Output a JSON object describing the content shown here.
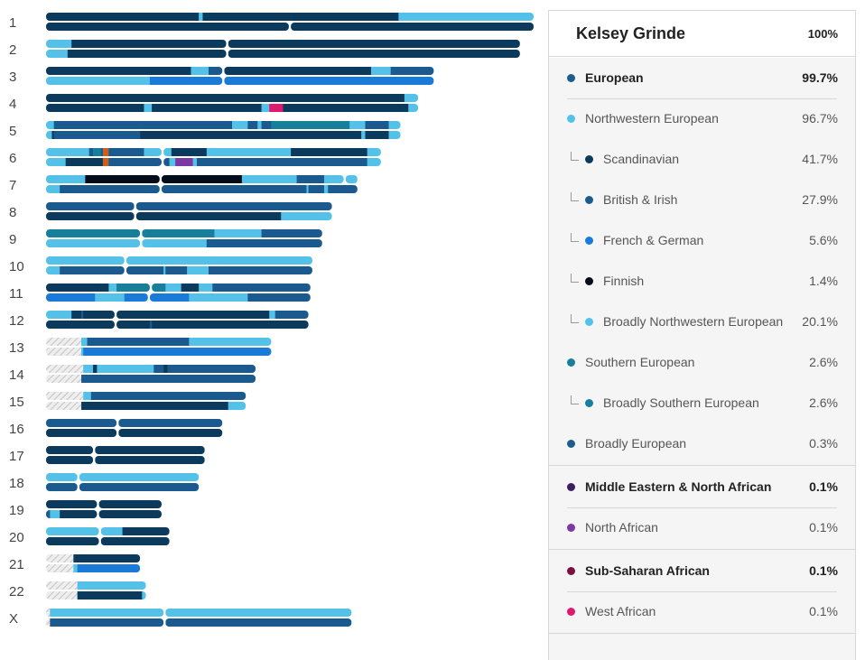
{
  "person": {
    "name": "Kelsey Grinde",
    "percent": "100%"
  },
  "colors": {
    "scandinavian": "#0b3a5c",
    "british_irish": "#1b5a8e",
    "french_german": "#1a7ad8",
    "finnish": "#050c19",
    "broadly_nw": "#53c1e8",
    "broadly_southern": "#177f99",
    "broadly_european": "#1d5c8c",
    "north_african": "#7b3aa3",
    "west_african": "#dd1a6e",
    "other_african": "#c9601f",
    "unassigned": "#d0d0d0"
  },
  "ancestry": [
    {
      "name": "European",
      "percent": "99.7%",
      "level": 0,
      "bold": true,
      "color": "#1d5c8c",
      "divider_after": "partial"
    },
    {
      "name": "Northwestern European",
      "percent": "96.7%",
      "level": 0,
      "bold": false,
      "color": "#53c1e8",
      "divider_after": "none"
    },
    {
      "name": "Scandinavian",
      "percent": "41.7%",
      "level": 1,
      "bold": false,
      "color": "#0b3a5c",
      "divider_after": "none"
    },
    {
      "name": "British & Irish",
      "percent": "27.9%",
      "level": 1,
      "bold": false,
      "color": "#1b5a8e",
      "divider_after": "none"
    },
    {
      "name": "French & German",
      "percent": "5.6%",
      "level": 1,
      "bold": false,
      "color": "#1a7ad8",
      "divider_after": "none"
    },
    {
      "name": "Finnish",
      "percent": "1.4%",
      "level": 1,
      "bold": false,
      "color": "#050c19",
      "divider_after": "none"
    },
    {
      "name": "Broadly Northwestern European",
      "percent": "20.1%",
      "level": 1,
      "bold": false,
      "color": "#53c1e8",
      "divider_after": "none"
    },
    {
      "name": "Southern European",
      "percent": "2.6%",
      "level": 0,
      "bold": false,
      "color": "#177f99",
      "divider_after": "none"
    },
    {
      "name": "Broadly Southern European",
      "percent": "2.6%",
      "level": 1,
      "bold": false,
      "color": "#177f99",
      "divider_after": "none"
    },
    {
      "name": "Broadly European",
      "percent": "0.3%",
      "level": 0,
      "bold": false,
      "color": "#1d5c8c",
      "divider_after": "full"
    },
    {
      "name": "Middle Eastern & North African",
      "percent": "0.1%",
      "level": 0,
      "bold": true,
      "color": "#3e1d63",
      "divider_after": "partial"
    },
    {
      "name": "North African",
      "percent": "0.1%",
      "level": 0,
      "bold": false,
      "color": "#7b3aa3",
      "divider_after": "full"
    },
    {
      "name": "Sub-Saharan African",
      "percent": "0.1%",
      "level": 0,
      "bold": true,
      "color": "#7a1240",
      "divider_after": "partial"
    },
    {
      "name": "West African",
      "percent": "0.1%",
      "level": 0,
      "bold": false,
      "color": "#dd1a6e",
      "divider_after": "full"
    }
  ],
  "chart_data": {
    "type": "chromosome_painting",
    "unit": "Mb",
    "chromosomes": [
      {
        "label": "1",
        "length": 249,
        "top": [
          [
            "SC",
            0,
            78
          ],
          [
            "BN",
            78,
            80
          ],
          [
            "SC",
            80,
            125
          ],
          [
            "SC",
            125,
            180
          ],
          [
            "BN",
            180,
            249
          ]
        ],
        "bottom": [
          [
            "SC",
            0,
            124
          ],
          [
            "SC",
            125,
            249
          ]
        ]
      },
      {
        "label": "2",
        "length": 242,
        "top": [
          [
            "BN",
            0,
            13
          ],
          [
            "SC",
            13,
            92
          ],
          [
            "SC",
            93,
            242
          ]
        ],
        "bottom": [
          [
            "BN",
            0,
            11
          ],
          [
            "SC",
            11,
            92
          ],
          [
            "SC",
            93,
            242
          ]
        ]
      },
      {
        "label": "3",
        "length": 198,
        "top": [
          [
            "SC",
            0,
            74
          ],
          [
            "BN",
            74,
            83
          ],
          [
            "BI",
            83,
            90
          ],
          [
            "SC",
            91,
            166
          ],
          [
            "BN",
            166,
            176
          ],
          [
            "BI",
            176,
            198
          ]
        ],
        "bottom": [
          [
            "BN",
            0,
            53
          ],
          [
            "FG",
            53,
            90
          ],
          [
            "FG",
            91,
            198
          ]
        ]
      },
      {
        "label": "4",
        "length": 190,
        "top": [
          [
            "SC",
            0,
            50
          ],
          [
            "SC",
            50,
            183
          ],
          [
            "BN",
            183,
            190
          ]
        ],
        "bottom": [
          [
            "SC",
            0,
            50
          ],
          [
            "BN",
            50,
            54
          ],
          [
            "SC",
            54,
            110
          ],
          [
            "BN",
            110,
            114
          ],
          [
            "WA",
            114,
            121
          ],
          [
            "SC",
            121,
            185
          ],
          [
            "BN",
            185,
            190
          ]
        ]
      },
      {
        "label": "5",
        "length": 181,
        "top": [
          [
            "BN",
            0,
            4
          ],
          [
            "BI",
            4,
            48
          ],
          [
            "BI",
            48,
            95
          ],
          [
            "BN",
            95,
            103
          ],
          [
            "BI",
            103,
            108
          ],
          [
            "BN",
            108,
            110
          ],
          [
            "BI",
            110,
            115
          ],
          [
            "BS",
            115,
            155
          ],
          [
            "BN",
            155,
            163
          ],
          [
            "BI",
            163,
            175
          ],
          [
            "BN",
            175,
            181
          ]
        ],
        "bottom": [
          [
            "BN",
            0,
            3
          ],
          [
            "SC",
            3,
            4
          ],
          [
            "BI",
            4,
            48
          ],
          [
            "SC",
            48,
            161
          ],
          [
            "BN",
            161,
            163
          ],
          [
            "SC",
            163,
            175
          ],
          [
            "BN",
            175,
            181
          ]
        ]
      },
      {
        "label": "6",
        "length": 171,
        "top": [
          [
            "BN",
            0,
            22
          ],
          [
            "BI",
            22,
            24
          ],
          [
            "BS",
            24,
            28
          ],
          [
            "BI",
            28,
            29
          ],
          [
            "OA",
            29,
            32
          ],
          [
            "BI",
            32,
            50
          ],
          [
            "BN",
            50,
            59
          ],
          [
            "BN",
            60,
            64
          ],
          [
            "SC",
            64,
            82
          ],
          [
            "BN",
            82,
            125
          ],
          [
            "SC",
            125,
            164
          ],
          [
            "BN",
            164,
            171
          ]
        ],
        "bottom": [
          [
            "BN",
            0,
            10
          ],
          [
            "SC",
            10,
            29
          ],
          [
            "OA",
            29,
            32
          ],
          [
            "BI",
            32,
            59
          ],
          [
            "BI",
            60,
            63
          ],
          [
            "BN",
            63,
            66
          ],
          [
            "NA",
            66,
            75
          ],
          [
            "BN",
            75,
            77
          ],
          [
            "BI",
            77,
            164
          ],
          [
            "BN",
            164,
            171
          ]
        ]
      },
      {
        "label": "7",
        "length": 159,
        "top": [
          [
            "BN",
            0,
            20
          ],
          [
            "FI",
            20,
            58
          ],
          [
            "FI",
            59,
            100
          ],
          [
            "BN",
            100,
            128
          ],
          [
            "BI",
            128,
            142
          ],
          [
            "BN",
            142,
            152
          ],
          [
            "BN",
            153,
            159
          ]
        ],
        "bottom": [
          [
            "BN",
            0,
            7
          ],
          [
            "BI",
            7,
            58
          ],
          [
            "BI",
            59,
            133
          ],
          [
            "BN",
            133,
            134
          ],
          [
            "BI",
            134,
            142
          ],
          [
            "BN",
            142,
            144
          ],
          [
            "BI",
            144,
            159
          ]
        ]
      },
      {
        "label": "8",
        "length": 146,
        "top": [
          [
            "BI",
            0,
            45
          ],
          [
            "BI",
            46,
            146
          ]
        ],
        "bottom": [
          [
            "SC",
            0,
            45
          ],
          [
            "SC",
            46,
            120
          ],
          [
            "BN",
            120,
            146
          ]
        ]
      },
      {
        "label": "9",
        "length": 141,
        "top": [
          [
            "BS",
            0,
            48
          ],
          [
            "BS",
            49,
            86
          ],
          [
            "BN",
            86,
            110
          ],
          [
            "BI",
            110,
            141
          ]
        ],
        "bottom": [
          [
            "BN",
            0,
            48
          ],
          [
            "BN",
            49,
            82
          ],
          [
            "BI",
            82,
            141
          ]
        ]
      },
      {
        "label": "10",
        "length": 136,
        "top": [
          [
            "BN",
            0,
            40
          ],
          [
            "BN",
            41,
            136
          ]
        ],
        "bottom": [
          [
            "BN",
            0,
            7
          ],
          [
            "BI",
            7,
            40
          ],
          [
            "BI",
            41,
            60
          ],
          [
            "BN",
            60,
            61
          ],
          [
            "BI",
            61,
            72
          ],
          [
            "BN",
            72,
            83
          ],
          [
            "BI",
            83,
            136
          ]
        ]
      },
      {
        "label": "11",
        "length": 135,
        "top": [
          [
            "SC",
            0,
            32
          ],
          [
            "BN",
            32,
            36
          ],
          [
            "BS",
            36,
            53
          ],
          [
            "BS",
            54,
            61
          ],
          [
            "BN",
            61,
            69
          ],
          [
            "SC",
            69,
            78
          ],
          [
            "BN",
            78,
            85
          ],
          [
            "BI",
            85,
            135
          ]
        ],
        "bottom": [
          [
            "FG",
            0,
            25
          ],
          [
            "BN",
            25,
            40
          ],
          [
            "FG",
            40,
            52
          ],
          [
            "FG",
            53,
            73
          ],
          [
            "BN",
            73,
            103
          ],
          [
            "BI",
            103,
            135
          ]
        ]
      },
      {
        "label": "12",
        "length": 134,
        "top": [
          [
            "BN",
            0,
            13
          ],
          [
            "SC",
            13,
            18
          ],
          [
            "BI",
            18,
            19
          ],
          [
            "SC",
            19,
            35
          ],
          [
            "SC",
            36,
            114
          ],
          [
            "BN",
            114,
            117
          ],
          [
            "BI",
            117,
            134
          ]
        ],
        "bottom": [
          [
            "SC",
            0,
            35
          ],
          [
            "SC",
            36,
            53
          ],
          [
            "BI",
            53,
            54
          ],
          [
            "SC",
            54,
            134
          ]
        ]
      },
      {
        "label": "13",
        "length": 115,
        "top": [
          [
            "UN",
            0,
            18
          ],
          [
            "BN",
            18,
            21
          ],
          [
            "BI",
            21,
            73
          ],
          [
            "BN",
            73,
            115
          ]
        ],
        "bottom": [
          [
            "UN",
            0,
            18
          ],
          [
            "BN",
            18,
            19
          ],
          [
            "FG",
            19,
            115
          ]
        ]
      },
      {
        "label": "14",
        "length": 107,
        "top": [
          [
            "UN",
            0,
            19
          ],
          [
            "BN",
            19,
            24
          ],
          [
            "SC",
            24,
            26
          ],
          [
            "BN",
            26,
            55
          ],
          [
            "BI",
            55,
            60
          ],
          [
            "SC",
            60,
            62
          ],
          [
            "BI",
            62,
            107
          ]
        ],
        "bottom": [
          [
            "UN",
            0,
            18
          ],
          [
            "BI",
            18,
            107
          ]
        ]
      },
      {
        "label": "15",
        "length": 102,
        "top": [
          [
            "UN",
            0,
            19
          ],
          [
            "BN",
            19,
            23
          ],
          [
            "BI",
            23,
            102
          ]
        ],
        "bottom": [
          [
            "UN",
            0,
            18
          ],
          [
            "SC",
            18,
            93
          ],
          [
            "BN",
            93,
            102
          ]
        ]
      },
      {
        "label": "16",
        "length": 90,
        "top": [
          [
            "BI",
            0,
            36
          ],
          [
            "BI",
            37,
            90
          ]
        ],
        "bottom": [
          [
            "SC",
            0,
            36
          ],
          [
            "SC",
            37,
            90
          ]
        ]
      },
      {
        "label": "17",
        "length": 81,
        "top": [
          [
            "SC",
            0,
            24
          ],
          [
            "SC",
            25,
            81
          ]
        ],
        "bottom": [
          [
            "SC",
            0,
            24
          ],
          [
            "SC",
            25,
            81
          ]
        ]
      },
      {
        "label": "18",
        "length": 78,
        "top": [
          [
            "BN",
            0,
            16
          ],
          [
            "BN",
            17,
            78
          ]
        ],
        "bottom": [
          [
            "BI",
            0,
            16
          ],
          [
            "BI",
            17,
            78
          ]
        ]
      },
      {
        "label": "19",
        "length": 59,
        "top": [
          [
            "SC",
            0,
            26
          ],
          [
            "SC",
            27,
            59
          ]
        ],
        "bottom": [
          [
            "BI",
            0,
            2
          ],
          [
            "BN",
            2,
            7
          ],
          [
            "SC",
            7,
            26
          ],
          [
            "SC",
            27,
            59
          ]
        ]
      },
      {
        "label": "20",
        "length": 63,
        "top": [
          [
            "BN",
            0,
            27
          ],
          [
            "BN",
            28,
            39
          ],
          [
            "SC",
            39,
            63
          ]
        ],
        "bottom": [
          [
            "SC",
            0,
            27
          ],
          [
            "SC",
            28,
            63
          ]
        ]
      },
      {
        "label": "21",
        "length": 48,
        "top": [
          [
            "UN",
            0,
            14
          ],
          [
            "SC",
            14,
            48
          ]
        ],
        "bottom": [
          [
            "UN",
            0,
            14
          ],
          [
            "BN",
            14,
            16
          ],
          [
            "FG",
            16,
            48
          ]
        ]
      },
      {
        "label": "22",
        "length": 51,
        "top": [
          [
            "UN",
            0,
            16
          ],
          [
            "BN",
            16,
            51
          ]
        ],
        "bottom": [
          [
            "UN",
            0,
            16
          ],
          [
            "SC",
            16,
            49
          ],
          [
            "BN",
            49,
            51
          ]
        ]
      },
      {
        "label": "X",
        "length": 156,
        "top": [
          [
            "UN",
            0,
            2
          ],
          [
            "BN",
            2,
            60
          ],
          [
            "BN",
            61,
            156
          ]
        ],
        "bottom": [
          [
            "UN",
            0,
            2
          ],
          [
            "BI",
            2,
            60
          ],
          [
            "BI",
            61,
            156
          ]
        ]
      }
    ]
  }
}
